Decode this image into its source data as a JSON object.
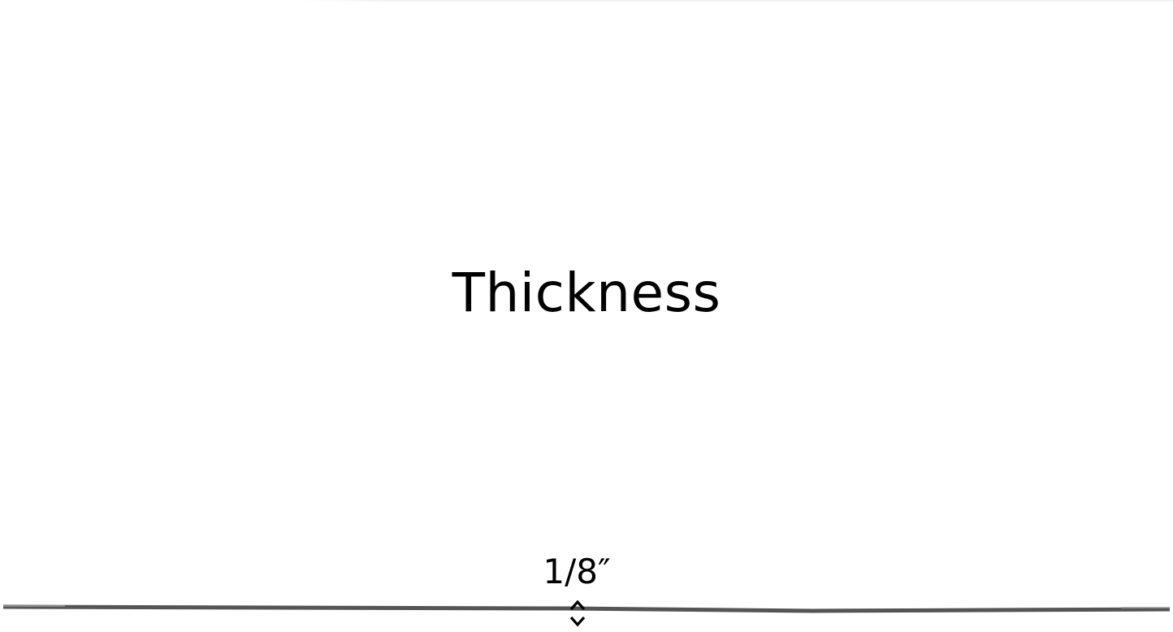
{
  "title": "Thickness",
  "dimension": {
    "label": "1/8″",
    "arrow_icon": "double-headed-vertical-arrow-icon"
  },
  "colors": {
    "background": "#ffffff",
    "text": "#000000",
    "sheet_edge": "#555555"
  }
}
